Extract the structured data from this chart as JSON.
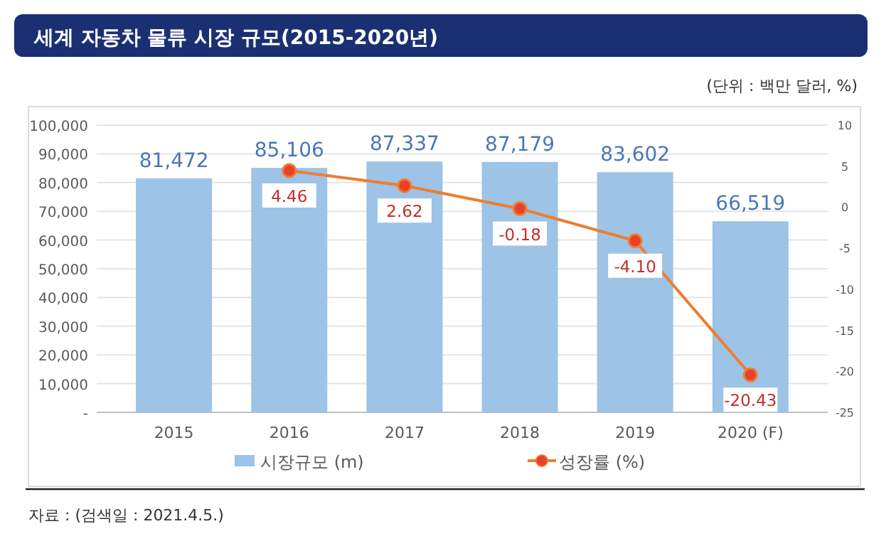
{
  "chart_data": {
    "type": "bar",
    "title": "세계 자동차 물류 시장 규모(2015-2020년)",
    "subtitle": "(단위 : 백만 달러, %)",
    "annotations": [
      "자료 : (검색일 : 2021.4.5.)"
    ],
    "categories": [
      "2015",
      "2016",
      "2017",
      "2018",
      "2019",
      "2020 (F)"
    ],
    "series": [
      {
        "name": "시장규모 (m)",
        "color": "#9dc3e6",
        "values": [
          81472,
          85106,
          87337,
          87179,
          83602,
          66519
        ],
        "value_labels": [
          "81,472",
          "85,106",
          "87,337",
          "87,179",
          "83,602",
          "66,519"
        ]
      },
      {
        "name": "성장률 (%)",
        "type": "line",
        "axis": "y2",
        "color": "#ed7d31",
        "values": [
          null,
          4.46,
          2.62,
          -0.18,
          -4.1,
          -20.43
        ],
        "value_labels": [
          null,
          "4.46",
          "2.62",
          "-0.18",
          "-4.10",
          "-20.43"
        ]
      }
    ],
    "ylim": [
      0,
      100000
    ],
    "yticks": [
      {
        "value": 0,
        "label": "-"
      },
      {
        "value": 10000,
        "label": "10,000"
      },
      {
        "value": 20000,
        "label": "20,000"
      },
      {
        "value": 30000,
        "label": "30,000"
      },
      {
        "value": 40000,
        "label": "40,000"
      },
      {
        "value": 50000,
        "label": "50,000"
      },
      {
        "value": 60000,
        "label": "60,000"
      },
      {
        "value": 70000,
        "label": "70,000"
      },
      {
        "value": 80000,
        "label": "80,000"
      },
      {
        "value": 90000,
        "label": "90,000"
      },
      {
        "value": 100000,
        "label": "100,000"
      }
    ],
    "y2lim": [
      -25,
      10
    ],
    "y2ticks": [
      -25,
      -20,
      -15,
      -10,
      -5,
      0,
      5,
      10
    ],
    "grid": "y",
    "legend": "bottom",
    "marker": "circle",
    "line_style": "solid"
  }
}
